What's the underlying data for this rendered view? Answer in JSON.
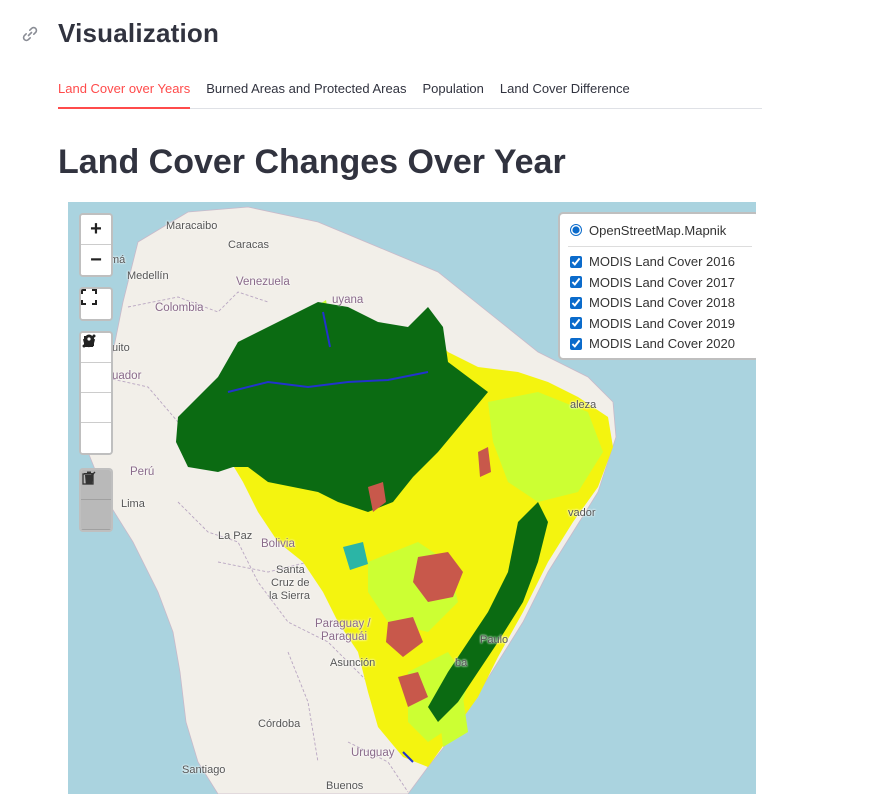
{
  "section": {
    "title": "Visualization",
    "link_icon": "link-icon"
  },
  "tabs": [
    {
      "label": "Land Cover over Years",
      "active": true
    },
    {
      "label": "Burned Areas and Protected Areas",
      "active": false
    },
    {
      "label": "Population",
      "active": false
    },
    {
      "label": "Land Cover Difference",
      "active": false
    }
  ],
  "heading": "Land Cover Changes Over Year",
  "map": {
    "zoom_in": "+",
    "zoom_out": "−",
    "basemap": "OpenStreetMap.Mapnik",
    "layers": [
      {
        "label": "MODIS Land Cover 2016",
        "checked": true
      },
      {
        "label": "MODIS Land Cover 2017",
        "checked": true
      },
      {
        "label": "MODIS Land Cover 2018",
        "checked": true
      },
      {
        "label": "MODIS Land Cover 2019",
        "checked": true
      },
      {
        "label": "MODIS Land Cover 2020",
        "checked": true
      }
    ],
    "place_labels": {
      "maracaibo": "Maracaibo",
      "caracas": "Caracas",
      "medellin": "Medellín",
      "venezuela": "Venezuela",
      "colombia": "Colombia",
      "guyana": "uyana",
      "quito": "uito",
      "ecuador": "uador",
      "peru": "Perú",
      "lima": "Lima",
      "lapaz": "La Paz",
      "bolivia": "Bolivia",
      "santacruz1": "Santa",
      "santacruz2": "Cruz de",
      "santacruz3": "la Sierra",
      "paraguay1": "Paraguay /",
      "paraguay2": "Paraguái",
      "asuncion": "Asunción",
      "cordoba": "Córdoba",
      "santiago": "Santiago",
      "uruguay": "Uruguay",
      "buenos": "Buenos",
      "fortaleza": "aleza",
      "salvador": "vador",
      "saopaulo": "Paulo",
      "rio": "ba",
      "cartesian": "má"
    },
    "colors": {
      "water": "#aad3df",
      "land": "#f2efe9",
      "forest": "#0b6b12",
      "savanna": "#ccff33",
      "grass": "#f4f40f",
      "crop": "#c8584b",
      "wetland": "#2bb5a6",
      "urban": "#2233cc"
    }
  }
}
